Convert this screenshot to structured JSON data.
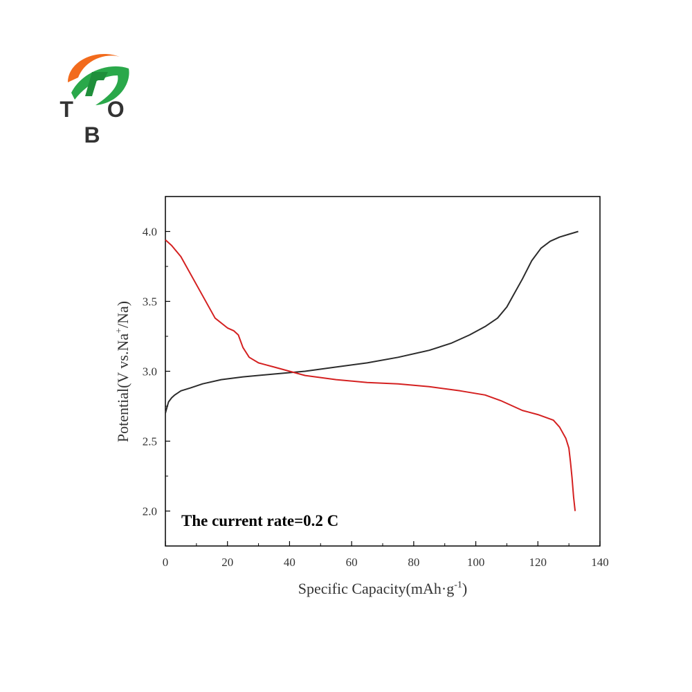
{
  "logo": {
    "text": "T O B",
    "icon": "tob-logo-icon"
  },
  "colors": {
    "charge": "#2b2b2b",
    "discharge": "#d42020",
    "axis": "#000000"
  },
  "chart_data": {
    "type": "line",
    "xlabel": "Specific Capacity(mAh·g",
    "xlabel_sup": "-1",
    "xlabel_end": ")",
    "ylabel": "Potential(V vs.Na",
    "ylabel_sup": "+",
    "ylabel_end": "/Na)",
    "annotation": "The current rate=0.2 C",
    "xlim": [
      0,
      140
    ],
    "ylim": [
      1.75,
      4.25
    ],
    "xticks": [
      "0",
      "20",
      "40",
      "60",
      "80",
      "100",
      "120",
      "140"
    ],
    "yticks": [
      "2.0",
      "2.5",
      "3.0",
      "3.5",
      "4.0"
    ],
    "series": [
      {
        "color": "#2b2b2b",
        "x": [
          0,
          0.5,
          1,
          2,
          3,
          5,
          8,
          12,
          18,
          25,
          35,
          45,
          55,
          65,
          75,
          85,
          92,
          98,
          103,
          107,
          110,
          112,
          115,
          118,
          121,
          124,
          127,
          130,
          133
        ],
        "y": [
          2.7,
          2.74,
          2.78,
          2.81,
          2.83,
          2.86,
          2.88,
          2.91,
          2.94,
          2.96,
          2.98,
          3.0,
          3.03,
          3.06,
          3.1,
          3.15,
          3.2,
          3.26,
          3.32,
          3.38,
          3.46,
          3.54,
          3.66,
          3.79,
          3.88,
          3.93,
          3.96,
          3.98,
          4.0
        ]
      },
      {
        "color": "#d42020",
        "x": [
          0,
          2,
          5,
          10,
          16,
          20,
          22,
          23.5,
          25,
          27,
          30,
          35,
          40,
          45,
          55,
          65,
          75,
          85,
          95,
          103,
          108,
          112,
          115,
          120,
          125,
          127,
          129,
          130,
          130.5,
          131,
          131.5,
          132
        ],
        "y": [
          3.94,
          3.9,
          3.82,
          3.62,
          3.38,
          3.31,
          3.29,
          3.26,
          3.17,
          3.1,
          3.06,
          3.03,
          3.0,
          2.97,
          2.94,
          2.92,
          2.91,
          2.89,
          2.86,
          2.83,
          2.79,
          2.75,
          2.72,
          2.69,
          2.65,
          2.6,
          2.52,
          2.45,
          2.35,
          2.24,
          2.1,
          2.0
        ]
      }
    ]
  }
}
